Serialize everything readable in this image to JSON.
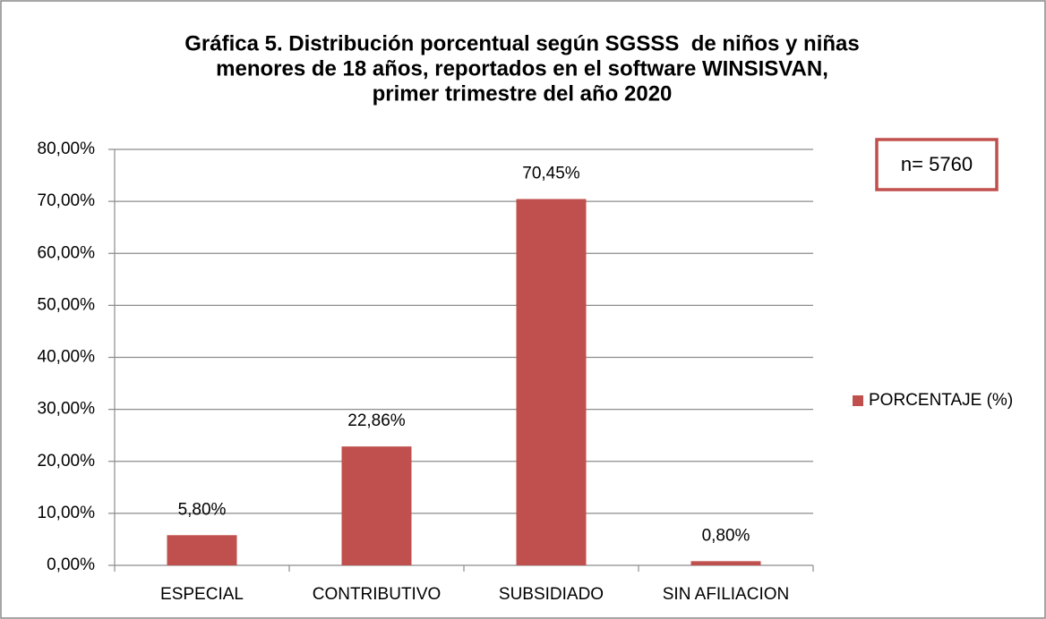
{
  "chart_data": {
    "type": "bar",
    "title": [
      "Gráfica 5. Distribución porcentual según SGSSS  de niños y niñas",
      "menores de 18 años, reportados en el software WINSISVAN,",
      "primer trimestre del año 2020"
    ],
    "categories": [
      "ESPECIAL",
      "CONTRIBUTIVO",
      "SUBSIDIADO",
      "SIN AFILIACION"
    ],
    "series": [
      {
        "name": "PORCENTAJE (%)",
        "color": "#c0504d",
        "values": [
          5.8,
          22.86,
          70.45,
          0.8
        ],
        "value_labels": [
          "5,80%",
          "22,86%",
          "70,45%",
          "0,80%"
        ]
      }
    ],
    "ylim": [
      0,
      80
    ],
    "yticks": [
      {
        "value": 0,
        "label": "0,00%"
      },
      {
        "value": 10,
        "label": "10,00%"
      },
      {
        "value": 20,
        "label": "20,00%"
      },
      {
        "value": 30,
        "label": "30,00%"
      },
      {
        "value": 40,
        "label": "40,00%"
      },
      {
        "value": 50,
        "label": "50,00%"
      },
      {
        "value": 60,
        "label": "60,00%"
      },
      {
        "value": 70,
        "label": "70,00%"
      },
      {
        "value": 80,
        "label": "80,00%"
      }
    ],
    "grid": true,
    "legend": "right",
    "annotations": [
      "n= 5760"
    ]
  }
}
